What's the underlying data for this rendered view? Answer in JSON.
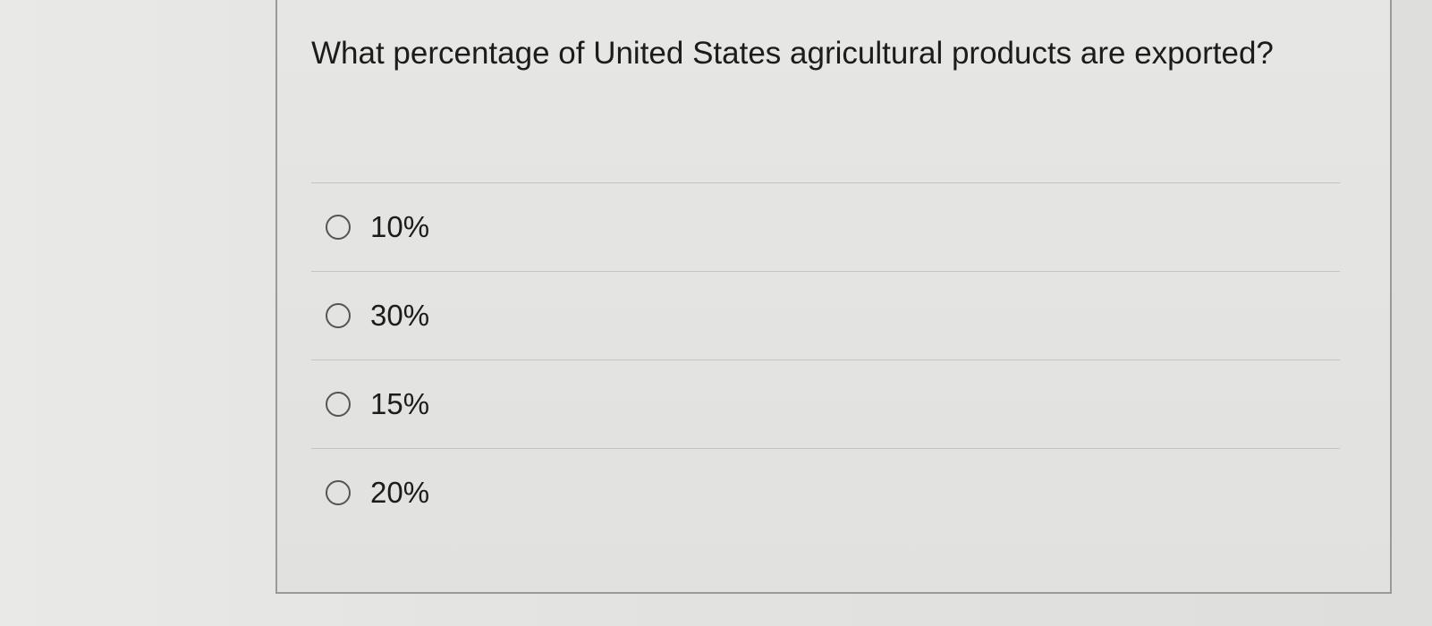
{
  "question": {
    "text": "What percentage of United States agricultural products are exported?"
  },
  "options": [
    {
      "label": "10%",
      "selected": false
    },
    {
      "label": "30%",
      "selected": false
    },
    {
      "label": "15%",
      "selected": false
    },
    {
      "label": "20%",
      "selected": false
    }
  ]
}
